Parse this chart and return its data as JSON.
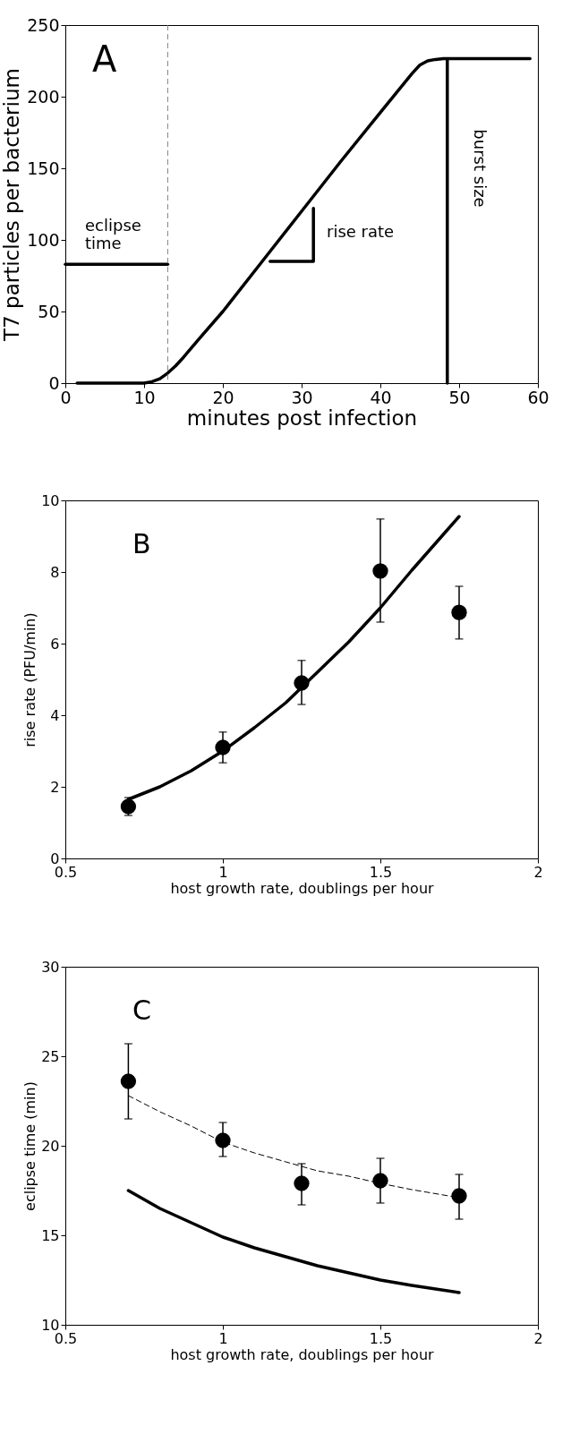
{
  "chart_data": [
    {
      "type": "line",
      "xlabel": "minutes post infection",
      "ylabel": "T7 particles per bacterium",
      "xlim": [
        0,
        60
      ],
      "ylim": [
        0,
        250
      ],
      "xticks": [
        0,
        10,
        20,
        30,
        40,
        50,
        60
      ],
      "yticks": [
        0,
        50,
        100,
        150,
        200,
        250
      ],
      "grid": false,
      "series": [
        {
          "color": "#000000",
          "line_style": "solid",
          "x": [
            1.5,
            5,
            10,
            11,
            12,
            13,
            14,
            15,
            17,
            20,
            25,
            30,
            35,
            40,
            44,
            45,
            46,
            47,
            48,
            59
          ],
          "values": [
            0,
            0,
            0,
            1,
            3,
            7,
            12,
            18,
            31,
            50,
            85,
            120,
            155,
            189,
            216,
            222,
            225,
            226,
            226.5,
            226.5
          ]
        },
        {
          "color": "#000000",
          "line_style": "solid",
          "x": [
            0,
            13
          ],
          "values": [
            83,
            83
          ]
        },
        {
          "color": "#000000",
          "line_style": "solid",
          "x": [
            26,
            31.5,
            31.5
          ],
          "values": [
            85,
            85,
            122
          ]
        },
        {
          "color": "#000000",
          "line_style": "solid",
          "x": [
            48.5,
            48.5
          ],
          "values": [
            0,
            226
          ]
        }
      ],
      "ref_lines": [
        {
          "axis": "x",
          "value": 13,
          "color": "#808080",
          "line_style": "dashed"
        }
      ],
      "annotations": [
        "A",
        "eclipse\ntime",
        "rise rate",
        "burst size"
      ]
    },
    {
      "type": "scatter",
      "xlabel": "host growth rate, doublings per hour",
      "ylabel": "rise rate (PFU/min)",
      "xlim": [
        0.5,
        2
      ],
      "ylim": [
        0,
        10
      ],
      "xticks": [
        0.5,
        1,
        1.5,
        2
      ],
      "yticks": [
        0,
        2,
        4,
        6,
        8,
        10
      ],
      "grid": false,
      "series": [
        {
          "type": "line",
          "color": "#000000",
          "line_style": "solid",
          "x": [
            0.7,
            0.8,
            0.9,
            1.0,
            1.1,
            1.2,
            1.3,
            1.4,
            1.5,
            1.6,
            1.7,
            1.75
          ],
          "values": [
            1.65,
            2.0,
            2.45,
            3.0,
            3.65,
            4.35,
            5.2,
            6.05,
            7.0,
            8.05,
            9.05,
            9.55
          ]
        },
        {
          "color": "#000000",
          "marker": "circle",
          "x": [
            0.7,
            1.0,
            1.25,
            1.5,
            1.75
          ],
          "values": [
            1.45,
            3.1,
            4.9,
            8.03,
            6.87
          ],
          "errors": [
            [
              1.2,
              1.7
            ],
            [
              2.67,
              3.53
            ],
            [
              4.3,
              5.53
            ],
            [
              6.6,
              9.48
            ],
            [
              6.13,
              7.6
            ]
          ]
        }
      ],
      "annotations": [
        "B"
      ]
    },
    {
      "type": "scatter",
      "xlabel": "host growth rate, doublings per hour",
      "ylabel": "eclipse time (min)",
      "xlim": [
        0.5,
        2
      ],
      "ylim": [
        10,
        30
      ],
      "xticks": [
        0.5,
        1,
        1.5,
        2
      ],
      "yticks": [
        10,
        15,
        20,
        25,
        30
      ],
      "grid": false,
      "series": [
        {
          "type": "line",
          "color": "#000000",
          "line_style": "dashed",
          "x": [
            0.7,
            0.8,
            0.9,
            1.0,
            1.1,
            1.2,
            1.3,
            1.4,
            1.5,
            1.6,
            1.75
          ],
          "values": [
            22.8,
            21.9,
            21.1,
            20.2,
            19.6,
            19.1,
            18.6,
            18.3,
            17.9,
            17.55,
            17.1
          ]
        },
        {
          "type": "line",
          "color": "#000000",
          "line_style": "solid",
          "x": [
            0.7,
            0.8,
            0.9,
            1.0,
            1.1,
            1.2,
            1.3,
            1.4,
            1.5,
            1.6,
            1.75
          ],
          "values": [
            17.5,
            16.5,
            15.7,
            14.9,
            14.3,
            13.8,
            13.3,
            12.9,
            12.5,
            12.2,
            11.8
          ]
        },
        {
          "color": "#000000",
          "marker": "circle",
          "x": [
            0.7,
            1.0,
            1.25,
            1.5,
            1.75
          ],
          "values": [
            23.6,
            20.3,
            17.9,
            18.05,
            17.2
          ],
          "errors": [
            [
              21.5,
              25.7
            ],
            [
              19.4,
              21.3
            ],
            [
              16.7,
              19.0
            ],
            [
              16.8,
              19.3
            ],
            [
              15.9,
              18.4
            ]
          ]
        }
      ],
      "annotations": [
        "C"
      ]
    }
  ]
}
